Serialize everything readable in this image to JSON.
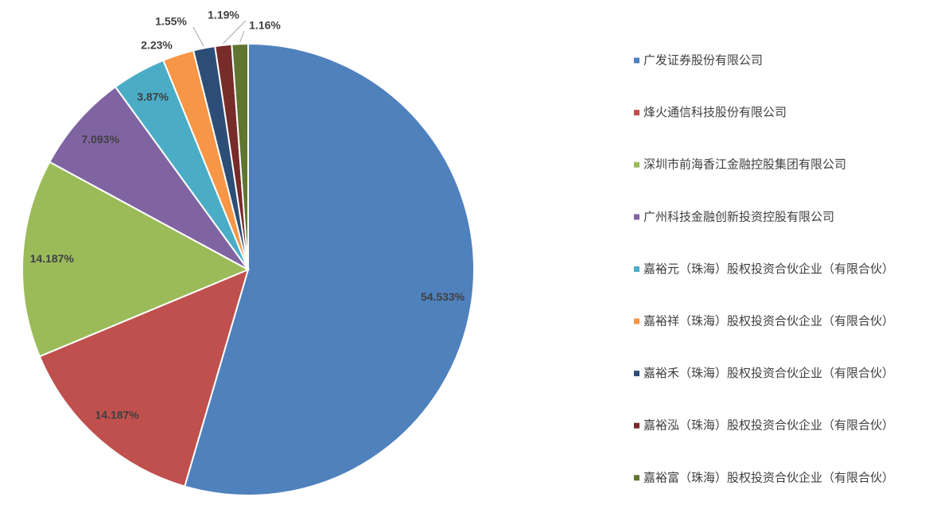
{
  "chart_data": {
    "type": "pie",
    "categories": [
      "广发证券股份有限公司",
      "烽火通信科技股份有限公司",
      "深圳市前海香江金融控股集团有限公司",
      "广州科技金融创新投资控股有限公司",
      "嘉裕元（珠海）股权投资合伙企业（有限合伙）",
      "嘉裕祥（珠海）股权投资合伙企业（有限合伙）",
      "嘉裕禾（珠海）股权投资合伙企业（有限合伙）",
      "嘉裕泓（珠海）股权投资合伙企业（有限合伙）",
      "嘉裕富（珠海）股权投资合伙企业（有限合伙）"
    ],
    "values": [
      54.533,
      14.187,
      14.187,
      7.093,
      3.87,
      2.23,
      1.55,
      1.19,
      1.16
    ],
    "value_labels": [
      "54.533%",
      "14.187%",
      "14.187%",
      "7.093%",
      "3.87%",
      "2.23%",
      "1.55%",
      "1.19%",
      "1.16%"
    ],
    "colors": [
      "#4f81bd",
      "#c0504d",
      "#9bbb59",
      "#8064a2",
      "#4bacc6",
      "#f79646",
      "#2c4d75",
      "#772c2a",
      "#5f7530"
    ],
    "legend": "right"
  }
}
